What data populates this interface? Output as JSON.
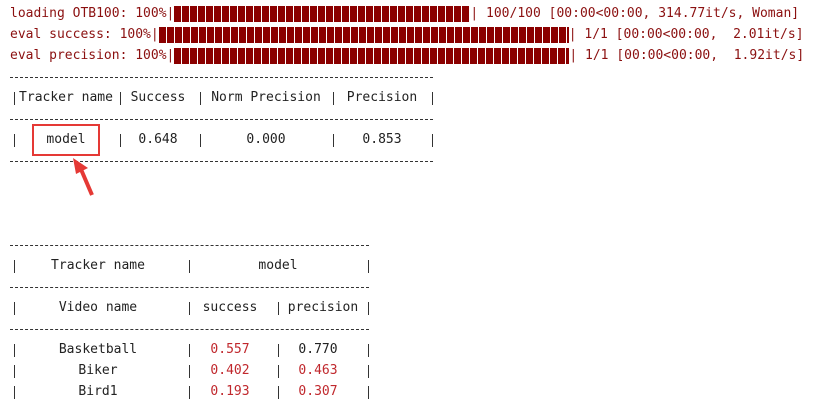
{
  "progress": [
    {
      "label": "loading OTB100: 100%|",
      "suffix": "| 100/100 [00:00<00:00, 314.77it/s, Woman]"
    },
    {
      "label": "eval success: 100%|",
      "suffix": "| 1/1 [00:00<00:00,  2.01it/s]"
    },
    {
      "label": "eval precision: 100%|",
      "suffix": "| 1/1 [00:00<00:00,  1.92it/s]"
    }
  ],
  "summary_table": {
    "header": [
      "Tracker name",
      "Success",
      "Norm Precision",
      "Precision"
    ],
    "rows": [
      [
        "model",
        "0.648",
        "0.000",
        "0.853"
      ]
    ]
  },
  "detail_table": {
    "tracker_header": [
      "Tracker name",
      "model"
    ],
    "header": [
      "Video name",
      "success",
      "precision"
    ],
    "rows": [
      [
        {
          "text": "Basketball",
          "color": "#222222"
        },
        {
          "text": "0.557",
          "color": "#c0282d"
        },
        {
          "text": "0.770",
          "color": "#222222"
        }
      ],
      [
        {
          "text": "Biker",
          "color": "#222222"
        },
        {
          "text": "0.402",
          "color": "#c0282d"
        },
        {
          "text": "0.463",
          "color": "#c0282d"
        }
      ],
      [
        {
          "text": "Bird1",
          "color": "#222222"
        },
        {
          "text": "0.193",
          "color": "#c0282d"
        },
        {
          "text": "0.307",
          "color": "#c0282d"
        }
      ]
    ]
  }
}
